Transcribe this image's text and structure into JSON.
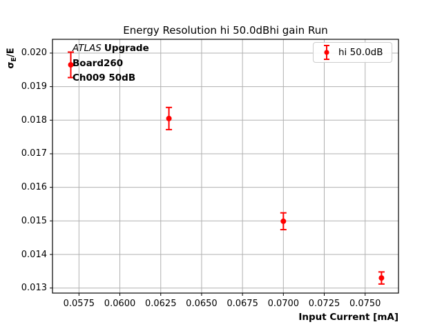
{
  "figure_title": "Energy Resolution hi 50.0dBhi gain Run",
  "axis": {
    "xlabel": "Input Current [mA]",
    "ylabel_sigma": "σ",
    "ylabel_sub": "E",
    "ylabel_post": "/E"
  },
  "annotation": {
    "experiment": "ATLAS",
    "experiment_suffix": "Upgrade",
    "board": "Board260",
    "channel": "Ch009 50dB"
  },
  "legend": {
    "entries": [
      {
        "label": "hi 50.0dB",
        "color": "#ff0000"
      }
    ]
  },
  "colors": {
    "series": "#ff0000",
    "grid": "#b0b0b0",
    "spine": "#000000",
    "background": "#ffffff",
    "legend_border": "#cccccc",
    "text": "#000000"
  },
  "chart_data": {
    "type": "scatter",
    "title": "Energy Resolution hi 50.0dBhi gain Run",
    "xlabel": "Input Current [mA]",
    "ylabel": "sigma_E / E",
    "series": [
      {
        "name": "hi 50.0dB",
        "color": "#ff0000",
        "x": [
          0.057,
          0.063,
          0.07,
          0.076
        ],
        "y": [
          0.01965,
          0.01805,
          0.01499,
          0.0133
        ],
        "yerr": [
          0.00038,
          0.00033,
          0.00025,
          0.00018
        ]
      }
    ],
    "xticks": [
      0.0575,
      0.06,
      0.0625,
      0.065,
      0.0675,
      0.07,
      0.0725,
      0.075
    ],
    "xtick_labels": [
      "0.0575",
      "0.0600",
      "0.0625",
      "0.0650",
      "0.0675",
      "0.0700",
      "0.0725",
      "0.0750"
    ],
    "yticks": [
      0.013,
      0.014,
      0.015,
      0.016,
      0.017,
      0.018,
      0.019,
      0.02
    ],
    "ytick_labels": [
      "0.013",
      "0.014",
      "0.015",
      "0.016",
      "0.017",
      "0.018",
      "0.019",
      "0.020"
    ],
    "xlim": [
      0.05588,
      0.07704
    ],
    "ylim": [
      0.01285,
      0.02041
    ],
    "grid": true,
    "legend_position": "upper right"
  }
}
